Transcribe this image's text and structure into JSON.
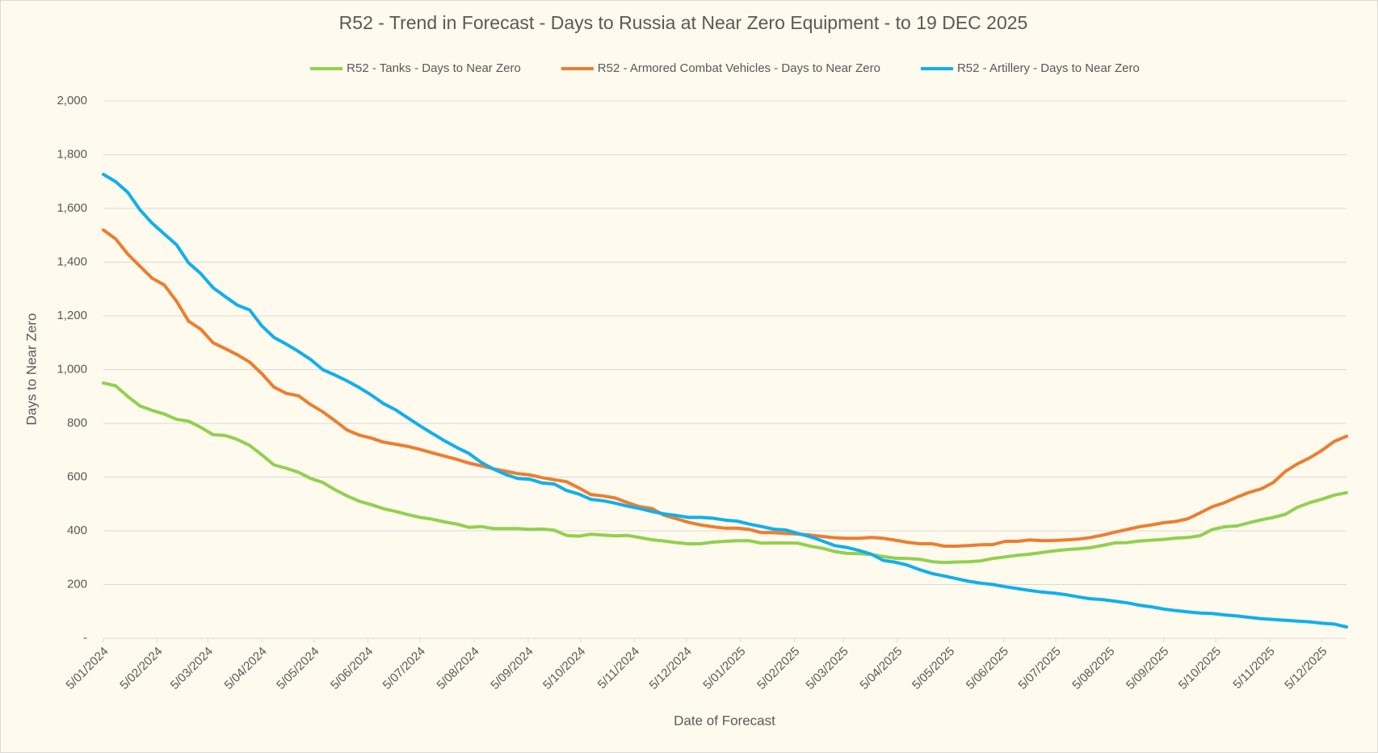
{
  "chart_data": {
    "type": "line",
    "title": "R52 - Trend in Forecast - Days to Russia at Near Zero Equipment - to 19 DEC 2025",
    "x_label": "Date of Forecast",
    "y_label": "Days to Near Zero",
    "grid": true,
    "legend": "top",
    "x": [
      "2024-01-05",
      "2024-01-12",
      "2024-01-19",
      "2024-01-26",
      "2024-02-02",
      "2024-02-09",
      "2024-02-16",
      "2024-02-23",
      "2024-03-01",
      "2024-03-08",
      "2024-03-15",
      "2024-03-22",
      "2024-03-29",
      "2024-04-05",
      "2024-04-12",
      "2024-04-19",
      "2024-04-26",
      "2024-05-03",
      "2024-05-10",
      "2024-05-17",
      "2024-05-24",
      "2024-05-31",
      "2024-06-07",
      "2024-06-14",
      "2024-06-21",
      "2024-06-28",
      "2024-07-05",
      "2024-07-12",
      "2024-07-19",
      "2024-07-26",
      "2024-08-02",
      "2024-08-09",
      "2024-08-16",
      "2024-08-23",
      "2024-08-30",
      "2024-09-06",
      "2024-09-13",
      "2024-09-20",
      "2024-09-27",
      "2024-10-04",
      "2024-10-11",
      "2024-10-18",
      "2024-10-25",
      "2024-11-01",
      "2024-11-08",
      "2024-11-15",
      "2024-11-22",
      "2024-11-29",
      "2024-12-06",
      "2024-12-13",
      "2024-12-20",
      "2024-12-27",
      "2025-01-03",
      "2025-01-10",
      "2025-01-17",
      "2025-01-24",
      "2025-01-31",
      "2025-02-07",
      "2025-02-14",
      "2025-02-21",
      "2025-02-28",
      "2025-03-07",
      "2025-03-14",
      "2025-03-21",
      "2025-03-28",
      "2025-04-04",
      "2025-04-11",
      "2025-04-18",
      "2025-04-25",
      "2025-05-02",
      "2025-05-09",
      "2025-05-16",
      "2025-05-23",
      "2025-05-30",
      "2025-06-06",
      "2025-06-13",
      "2025-06-20",
      "2025-06-27",
      "2025-07-04",
      "2025-07-11",
      "2025-07-18",
      "2025-07-25",
      "2025-08-01",
      "2025-08-08",
      "2025-08-15",
      "2025-08-22",
      "2025-08-29",
      "2025-09-05",
      "2025-09-12",
      "2025-09-19",
      "2025-09-26",
      "2025-10-03",
      "2025-10-10",
      "2025-10-17",
      "2025-10-24",
      "2025-10-31",
      "2025-11-07",
      "2025-11-14",
      "2025-11-21",
      "2025-11-28",
      "2025-12-05",
      "2025-12-12",
      "2025-12-19"
    ],
    "xlim": [
      "2024-01-05",
      "2025-12-19"
    ],
    "xticks": [
      {
        "value": "2024-01-05",
        "label": "5/01/2024"
      },
      {
        "value": "2024-02-05",
        "label": "5/02/2024"
      },
      {
        "value": "2024-03-05",
        "label": "5/03/2024"
      },
      {
        "value": "2024-04-05",
        "label": "5/04/2024"
      },
      {
        "value": "2024-05-05",
        "label": "5/05/2024"
      },
      {
        "value": "2024-06-05",
        "label": "5/06/2024"
      },
      {
        "value": "2024-07-05",
        "label": "5/07/2024"
      },
      {
        "value": "2024-08-05",
        "label": "5/08/2024"
      },
      {
        "value": "2024-09-05",
        "label": "5/09/2024"
      },
      {
        "value": "2024-10-05",
        "label": "5/10/2024"
      },
      {
        "value": "2024-11-05",
        "label": "5/11/2024"
      },
      {
        "value": "2024-12-05",
        "label": "5/12/2024"
      },
      {
        "value": "2025-01-05",
        "label": "5/01/2025"
      },
      {
        "value": "2025-02-05",
        "label": "5/02/2025"
      },
      {
        "value": "2025-03-05",
        "label": "5/03/2025"
      },
      {
        "value": "2025-04-05",
        "label": "5/04/2025"
      },
      {
        "value": "2025-05-05",
        "label": "5/05/2025"
      },
      {
        "value": "2025-06-05",
        "label": "5/06/2025"
      },
      {
        "value": "2025-07-05",
        "label": "5/07/2025"
      },
      {
        "value": "2025-08-05",
        "label": "5/08/2025"
      },
      {
        "value": "2025-09-05",
        "label": "5/09/2025"
      },
      {
        "value": "2025-10-05",
        "label": "5/10/2025"
      },
      {
        "value": "2025-11-05",
        "label": "5/11/2025"
      },
      {
        "value": "2025-12-05",
        "label": "5/12/2025"
      }
    ],
    "ylim": [
      0,
      2000
    ],
    "yticks": [
      {
        "value": 0,
        "label": "-"
      },
      200,
      400,
      600,
      800,
      {
        "value": 1000,
        "label": "1,000"
      },
      {
        "value": 1200,
        "label": "1,200"
      },
      {
        "value": 1400,
        "label": "1,400"
      },
      {
        "value": 1600,
        "label": "1,600"
      },
      {
        "value": 1800,
        "label": "1,800"
      },
      {
        "value": 2000,
        "label": "2,000"
      }
    ],
    "series": [
      {
        "name": "R52 - Tanks - Days to Near Zero",
        "color": "#92d050",
        "values": [
          950,
          940,
          900,
          865,
          848,
          835,
          815,
          808,
          785,
          758,
          755,
          740,
          718,
          683,
          645,
          633,
          618,
          595,
          580,
          553,
          530,
          510,
          497,
          482,
          472,
          460,
          450,
          443,
          433,
          425,
          413,
          416,
          408,
          408,
          408,
          405,
          407,
          402,
          383,
          380,
          387,
          384,
          381,
          383,
          375,
          367,
          362,
          356,
          352,
          352,
          358,
          361,
          363,
          363,
          354,
          355,
          355,
          354,
          343,
          335,
          323,
          316,
          315,
          312,
          304,
          298,
          297,
          294,
          285,
          282,
          284,
          285,
          288,
          297,
          303,
          309,
          313,
          319,
          325,
          330,
          333,
          337,
          346,
          355,
          356,
          362,
          365,
          368,
          373,
          375,
          382,
          405,
          415,
          418,
          430,
          441,
          450,
          462,
          488,
          505,
          518,
          533,
          542
        ]
      },
      {
        "name": "R52 - Armored Combat Vehicles - Days to Near Zero",
        "color": "#ed7d31",
        "values": [
          1520,
          1487,
          1430,
          1385,
          1340,
          1315,
          1255,
          1180,
          1150,
          1100,
          1078,
          1055,
          1028,
          985,
          935,
          912,
          903,
          870,
          843,
          810,
          775,
          756,
          745,
          730,
          722,
          714,
          703,
          690,
          678,
          666,
          652,
          642,
          631,
          622,
          613,
          608,
          598,
          590,
          583,
          560,
          535,
          530,
          522,
          505,
          490,
          483,
          458,
          445,
          432,
          422,
          415,
          410,
          410,
          405,
          393,
          393,
          390,
          388,
          384,
          379,
          374,
          372,
          372,
          375,
          372,
          365,
          357,
          352,
          352,
          343,
          343,
          345,
          348,
          349,
          361,
          361,
          366,
          363,
          364,
          366,
          369,
          375,
          384,
          395,
          405,
          415,
          422,
          430,
          435,
          445,
          467,
          490,
          505,
          525,
          543,
          556,
          580,
          622,
          650,
          672,
          700,
          733,
          752
        ]
      },
      {
        "name": "R52 - Artillery - Days to Near Zero",
        "color": "#10b0ea",
        "values": [
          1727,
          1700,
          1660,
          1595,
          1545,
          1505,
          1465,
          1397,
          1357,
          1305,
          1272,
          1240,
          1222,
          1163,
          1120,
          1095,
          1068,
          1038,
          1000,
          980,
          958,
          933,
          905,
          873,
          850,
          820,
          790,
          762,
          735,
          710,
          688,
          655,
          630,
          610,
          595,
          592,
          578,
          574,
          550,
          537,
          517,
          512,
          503,
          492,
          483,
          472,
          463,
          457,
          450,
          450,
          447,
          440,
          436,
          425,
          416,
          406,
          403,
          390,
          378,
          362,
          345,
          338,
          327,
          313,
          290,
          283,
          272,
          255,
          241,
          232,
          222,
          212,
          205,
          200,
          192,
          185,
          178,
          172,
          168,
          162,
          154,
          147,
          144,
          138,
          132,
          123,
          117,
          109,
          103,
          98,
          94,
          92,
          87,
          83,
          78,
          73,
          70,
          67,
          64,
          61,
          56,
          53,
          42
        ]
      }
    ]
  }
}
